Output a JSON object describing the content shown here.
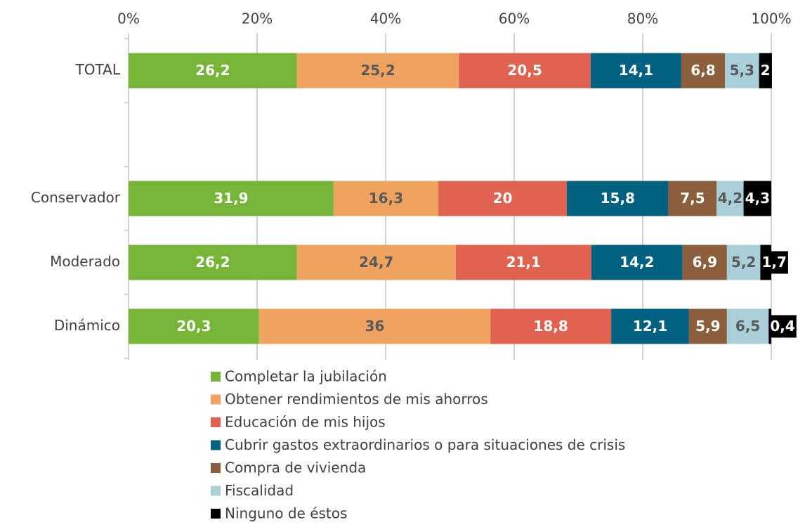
{
  "chart_data": {
    "type": "bar",
    "orientation": "horizontal",
    "stacked": true,
    "categories": [
      "TOTAL",
      null,
      "Conservador",
      "Moderado",
      "Dinámico"
    ],
    "xlim": [
      0,
      100
    ],
    "xticks": [
      {
        "value": 0,
        "label": "0%"
      },
      {
        "value": 20,
        "label": "20%"
      },
      {
        "value": 40,
        "label": "40%"
      },
      {
        "value": 60,
        "label": "60%"
      },
      {
        "value": 80,
        "label": "80%"
      },
      {
        "value": 100,
        "label": "100%"
      }
    ],
    "grid": true,
    "legend": "bottom",
    "series": [
      {
        "name": "Completar la jubilación",
        "color": "#76b535",
        "label_color": "#ffffff",
        "values": [
          26.2,
          null,
          31.9,
          26.2,
          20.3
        ],
        "value_labels": [
          "26,2",
          null,
          "31,9",
          "26,2",
          "20,3"
        ]
      },
      {
        "name": "Obtener rendimientos de mis ahorros",
        "color": "#f0a35e",
        "label_color": "#595959",
        "values": [
          25.2,
          null,
          16.3,
          24.7,
          36
        ],
        "value_labels": [
          "25,2",
          null,
          "16,3",
          "24,7",
          "36"
        ]
      },
      {
        "name": "Educación de mis hijos",
        "color": "#e06352",
        "label_color": "#ffffff",
        "values": [
          20.5,
          null,
          20,
          21.1,
          18.8
        ],
        "value_labels": [
          "20,5",
          null,
          "20",
          "21,1",
          "18,8"
        ]
      },
      {
        "name": "Cubrir gastos extraordinarios o para situaciones de crisis",
        "color": "#006080",
        "label_color": "#ffffff",
        "values": [
          14.1,
          null,
          15.8,
          14.2,
          12.1
        ],
        "value_labels": [
          "14,1",
          null,
          "15,8",
          "14,2",
          "12,1"
        ]
      },
      {
        "name": "Compra de vivienda",
        "color": "#8b5e3c",
        "label_color": "#ffffff",
        "values": [
          6.8,
          null,
          7.5,
          6.9,
          5.9
        ],
        "value_labels": [
          "6,8",
          null,
          "7,5",
          "6,9",
          "5,9"
        ]
      },
      {
        "name": "Fiscalidad",
        "color": "#a9d0d8",
        "label_color": "#595959",
        "values": [
          5.3,
          null,
          4.2,
          5.2,
          6.5
        ],
        "value_labels": [
          "5,3",
          null,
          "4,2",
          "5,2",
          "6,5"
        ]
      },
      {
        "name": "Ninguno de éstos",
        "color": "#000000",
        "label_color": "#ffffff",
        "values": [
          2,
          null,
          4.3,
          1.7,
          0.4
        ],
        "value_labels": [
          "2",
          null,
          "4,3",
          "1,7",
          "0,4"
        ]
      }
    ]
  }
}
